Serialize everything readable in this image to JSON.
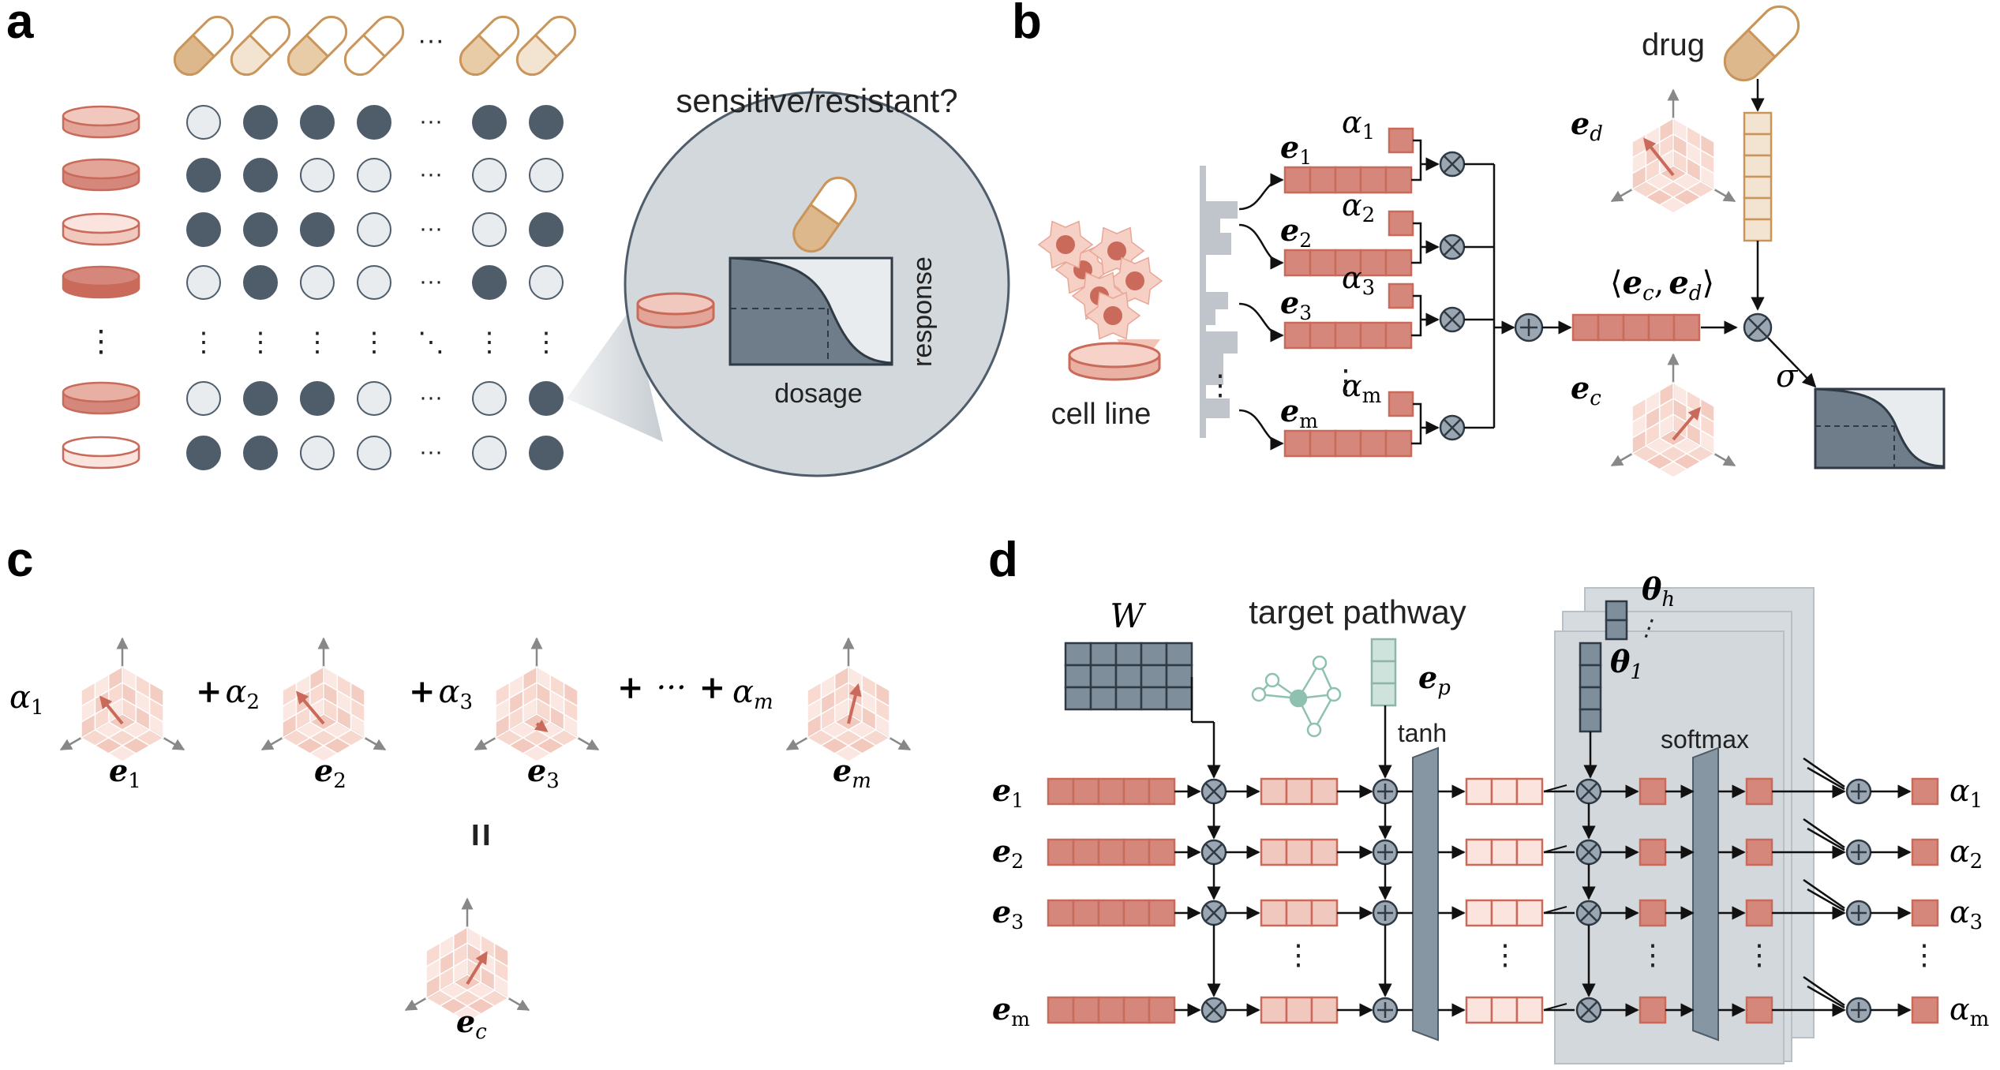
{
  "panels": {
    "a": "a",
    "b": "b",
    "c": "c",
    "d": "d"
  },
  "panel_a": {
    "question": "sensitive/resistant?",
    "ellipsis": "···",
    "vdots": "⋮",
    "ddots": "⋱",
    "dosage": "dosage",
    "response": "response",
    "matrix": [
      [
        0,
        1,
        1,
        1,
        1,
        1
      ],
      [
        1,
        1,
        0,
        0,
        0,
        0
      ],
      [
        1,
        1,
        1,
        0,
        0,
        1
      ],
      [
        0,
        1,
        0,
        0,
        1,
        0
      ],
      [
        0,
        1,
        1,
        0,
        0,
        1
      ],
      [
        1,
        1,
        0,
        0,
        0,
        1
      ]
    ],
    "colors": {
      "sensitive": "#4f5d6b",
      "resistant": "#e8ecef",
      "cell": "#c96a5a",
      "drug": "#c9955a"
    }
  },
  "panel_b": {
    "drug": "drug",
    "cell_line": "cell line",
    "e1": "e",
    "e1_sub": "1",
    "e2": "e",
    "e2_sub": "2",
    "e3": "e",
    "e3_sub": "3",
    "em": "e",
    "em_sub": "m",
    "a1": "α",
    "a1_sub": "1",
    "a2": "α",
    "a2_sub": "2",
    "a3": "α",
    "a3_sub": "3",
    "am": "α",
    "am_sub": "m",
    "ed": "e",
    "ed_sub": "d",
    "ec": "e",
    "ec_sub": "c",
    "inner_open": "⟨",
    "inner_comma": ",",
    "inner_close": "⟩",
    "inner_e1": "e",
    "inner_s1": "c",
    "inner_e2": "e",
    "inner_s2": "d",
    "sigma": "σ"
  },
  "panel_c": {
    "a1": "α",
    "a1_sub": "1",
    "plus1": "+",
    "a2": "α",
    "a2_sub": "2",
    "plus2": "+",
    "a3": "α",
    "a3_sub": "3",
    "plus3": "+",
    "dots": "···",
    "plus4": "+",
    "am": "α",
    "am_sub": "m",
    "e1": "e",
    "e1_sub": "1",
    "e2": "e",
    "e2_sub": "2",
    "e3": "e",
    "e3_sub": "3",
    "em": "e",
    "em_sub": "m",
    "equals": "=",
    "ec": "e",
    "ec_sub": "c"
  },
  "panel_d": {
    "W": "W",
    "target_pathway": "target pathway",
    "ep": "e",
    "ep_sub": "p",
    "tanh": "tanh",
    "softmax": "softmax",
    "theta_h": "θ",
    "theta_h_sub": "h",
    "theta_1": "θ",
    "theta_1_sub": "1",
    "rows": [
      {
        "e": "e",
        "sub": "1",
        "a": "α",
        "asub": "1"
      },
      {
        "e": "e",
        "sub": "2",
        "a": "α",
        "asub": "2"
      },
      {
        "e": "e",
        "sub": "3",
        "a": "α",
        "asub": "3"
      },
      {
        "e": "e",
        "sub": "m",
        "a": "α",
        "asub": "m"
      }
    ],
    "vdots": "⋮"
  }
}
